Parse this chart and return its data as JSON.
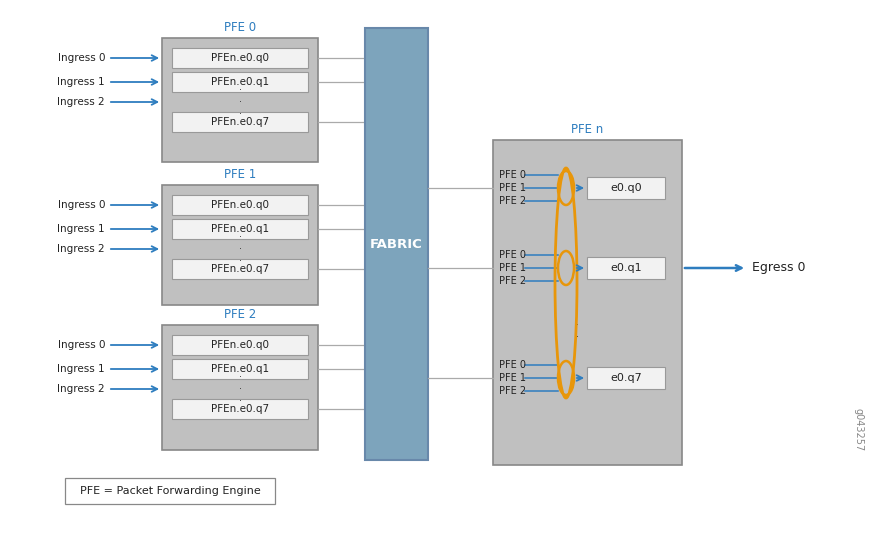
{
  "fig_width": 8.82,
  "fig_height": 5.36,
  "bg_color": "#ffffff",
  "blue_color": "#2e7dbf",
  "orange_color": "#e8960a",
  "pfe_outer_color": "#c0c0c0",
  "pfe_outer_edge": "#888888",
  "queue_box_color": "#f2f2f2",
  "queue_box_edge": "#999999",
  "fabric_color": "#7da4bc",
  "fabric_edge": "#6888aa",
  "pfen_outer_color": "#c0c0c0",
  "egress_box_color": "#f2f2f2",
  "egress_box_edge": "#999999",
  "fabric_label": "FABRIC",
  "pfe_label_n": "PFE n",
  "pfe_labels": [
    "PFE 0",
    "PFE 1",
    "PFE 2"
  ],
  "ingress_labels": [
    "Ingress 0",
    "Ingress 1",
    "Ingress 2"
  ],
  "queue_labels": [
    "PFEn.e0.q0",
    "PFEn.e0.q1",
    "PFEn.e0.q7"
  ],
  "egress_q_labels": [
    "e0.q0",
    "e0.q1",
    "e0.q7"
  ],
  "pfe_sub_labels": [
    "PFE 0",
    "PFE 1",
    "PFE 2"
  ],
  "egress_label": "Egress 0",
  "footnote": "PFE = Packet Forwarding Engine",
  "watermark": "g043257",
  "line_color": "#aaaaaa",
  "text_color": "#222222"
}
